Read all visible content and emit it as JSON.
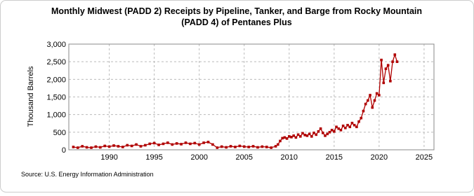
{
  "chart_data": {
    "type": "line",
    "title": "Monthly Midwest (PADD 2) Receipts by Pipeline, Tanker, and Barge from Rocky Mountain",
    "subtitle": "(PADD 4) of Pentanes Plus",
    "y_label": "Thousand Barrels",
    "source": "Source: U.S. Energy Information Administration",
    "x": [
      1986,
      1986.5,
      1987,
      1987.5,
      1988,
      1988.5,
      1989,
      1989.5,
      1990,
      1990.5,
      1991,
      1991.5,
      1992,
      1992.5,
      1993,
      1993.5,
      1994,
      1994.5,
      1995,
      1995.5,
      1996,
      1996.5,
      1997,
      1997.5,
      1998,
      1998.5,
      1999,
      1999.5,
      2000,
      2000.5,
      2001,
      2001.5,
      2002,
      2002.5,
      2003,
      2003.5,
      2004,
      2004.5,
      2005,
      2005.5,
      2006,
      2006.5,
      2007,
      2007.5,
      2008,
      2008.5,
      2008.75,
      2009,
      2009.25,
      2009.5,
      2009.75,
      2010,
      2010.25,
      2010.5,
      2010.75,
      2011,
      2011.25,
      2011.5,
      2011.75,
      2012,
      2012.25,
      2012.5,
      2012.75,
      2013,
      2013.25,
      2013.5,
      2013.75,
      2014,
      2014.25,
      2014.5,
      2014.75,
      2015,
      2015.25,
      2015.5,
      2015.75,
      2016,
      2016.25,
      2016.5,
      2016.75,
      2017,
      2017.25,
      2017.5,
      2017.75,
      2018,
      2018.25,
      2018.5,
      2018.75,
      2019,
      2019.25,
      2019.5,
      2019.75,
      2020,
      2020.25,
      2020.5,
      2020.75,
      2021,
      2021.25,
      2021.5,
      2021.75,
      2022
    ],
    "series": [
      {
        "name": "Receipts",
        "color": "#b00000",
        "values": [
          80,
          60,
          100,
          70,
          60,
          90,
          70,
          110,
          90,
          120,
          100,
          80,
          130,
          110,
          150,
          100,
          130,
          170,
          190,
          140,
          170,
          200,
          150,
          180,
          160,
          200,
          170,
          190,
          150,
          200,
          220,
          150,
          60,
          90,
          70,
          100,
          80,
          110,
          90,
          80,
          100,
          70,
          90,
          80,
          60,
          100,
          150,
          250,
          330,
          350,
          320,
          380,
          360,
          400,
          350,
          430,
          380,
          470,
          420,
          400,
          450,
          380,
          480,
          430,
          520,
          600,
          480,
          400,
          450,
          500,
          560,
          520,
          650,
          600,
          560,
          680,
          620,
          700,
          650,
          760,
          700,
          650,
          800,
          900,
          1100,
          1300,
          1400,
          1550,
          1200,
          1400,
          1600,
          1550,
          2550,
          1900,
          2300,
          2400,
          1950,
          2500,
          2700,
          2500
        ]
      }
    ],
    "xlim": [
      1985.5,
      2026.1
    ],
    "ylim": [
      0,
      3000
    ],
    "xticks": [
      1990,
      1995,
      2000,
      2005,
      2010,
      2015,
      2020,
      2025
    ],
    "yticks": [
      0,
      500,
      {
        "value": 1000,
        "label": "1,000"
      },
      {
        "value": 1500,
        "label": "1,500"
      },
      {
        "value": 2000,
        "label": "2,000"
      },
      {
        "value": 2500,
        "label": "2,500"
      },
      {
        "value": 3000,
        "label": "3,000"
      }
    ],
    "grid": true
  }
}
